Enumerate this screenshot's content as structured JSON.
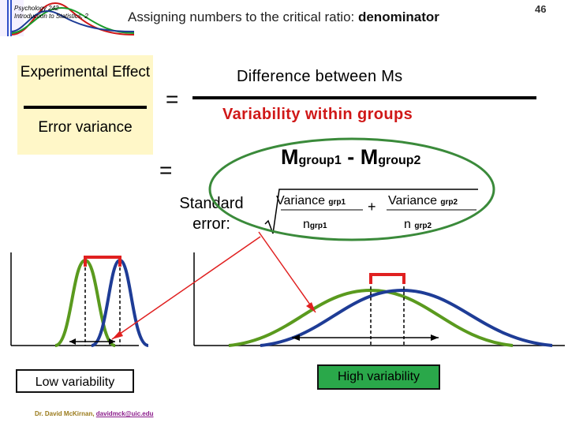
{
  "header": {
    "logo_text": "Psychology 242 Introduction to Statistics, 2",
    "title_prefix": "Assigning numbers to the critical ratio: ",
    "title_emphasis": "denominator",
    "page_number": "46"
  },
  "left_formula": {
    "numerator": "Experimental Effect",
    "denominator": "Error variance",
    "equals": "="
  },
  "right_formula": {
    "numerator": "Difference between Ms",
    "denominator": "Variability within groups",
    "equals": "=",
    "mean_diff_main1": "M",
    "mean_diff_sub1": "group1",
    "mean_diff_minus": " - M",
    "mean_diff_sub2": "group2"
  },
  "standard_error": {
    "label": "Standard error:",
    "var1_main": "Variance ",
    "var1_sub": "grp1",
    "n1_main": "n",
    "n1_sub": "grp1",
    "plus": "+",
    "var2_main": "Variance ",
    "var2_sub": "grp2",
    "n2_main": "n ",
    "n2_sub": "grp2"
  },
  "panels": {
    "low_label": "Low variability",
    "high_label": "High variability"
  },
  "footer": {
    "author": "Dr. David McKirnan, ",
    "email": "davidmck@uic.edu"
  },
  "colors": {
    "green_curve": "#5a9a1e",
    "blue_curve": "#1e3c96",
    "red_marker": "#e02020",
    "high_label_bg": "#2aa84a",
    "ellipse": "#3a8a3a"
  }
}
